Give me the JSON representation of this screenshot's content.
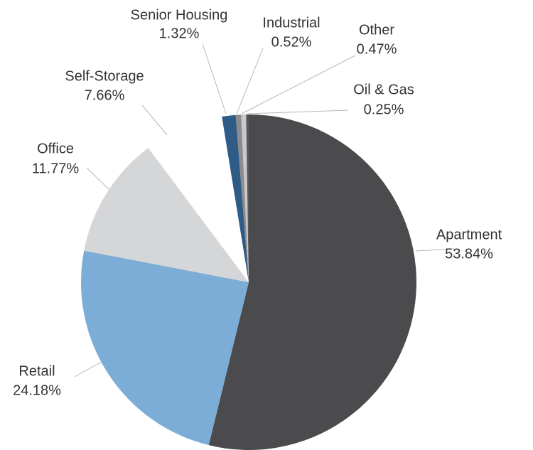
{
  "chart_data": {
    "type": "pie",
    "categories": [
      "Apartment",
      "Retail",
      "Office",
      "Self-Storage",
      "Senior Housing",
      "Industrial",
      "Other",
      "Oil & Gas"
    ],
    "values": [
      53.84,
      24.18,
      11.77,
      7.66,
      1.32,
      0.52,
      0.47,
      0.25
    ],
    "value_labels": [
      "53.84%",
      "24.18%",
      "11.77%",
      "7.66%",
      "1.32%",
      "0.52%",
      "0.47%",
      "0.25%"
    ],
    "colors": [
      "#4b4b4d",
      "#7badd6",
      "#d5d6d8",
      "#ffffff",
      "#2f5b87",
      "#8c8c8e",
      "#c9c9cb",
      "#58585a"
    ]
  }
}
